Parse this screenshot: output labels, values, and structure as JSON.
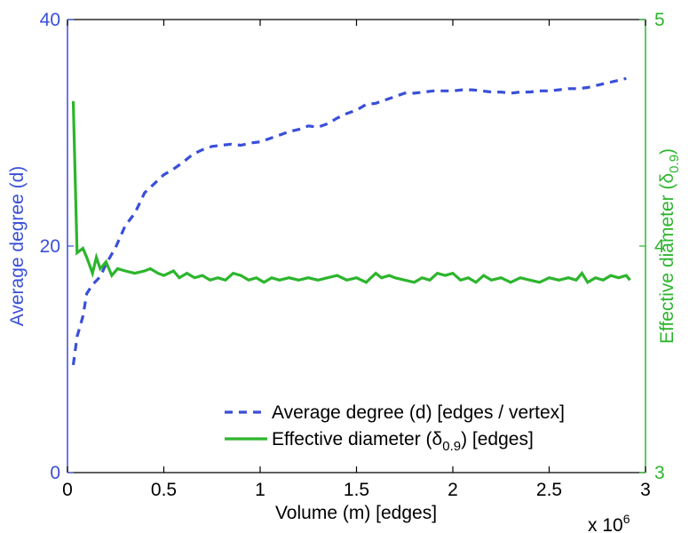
{
  "chart_data": {
    "type": "line",
    "xlabel": "Volume (m) [edges]",
    "x_scale_label": "x 10",
    "x_scale_exponent": "6",
    "xlim": [
      0,
      3
    ],
    "x_ticks": [
      "0",
      "0.5",
      "1",
      "1.5",
      "2",
      "2.5",
      "3"
    ],
    "y_left": {
      "label": "Average degree (d)",
      "lim": [
        0,
        40
      ],
      "ticks": [
        "0",
        "20",
        "40"
      ],
      "color": "#3a4fd8"
    },
    "y_right": {
      "label_main": "Effective diameter (",
      "label_symbol": "δ",
      "label_sub": "0.9",
      "label_end": ")",
      "lim": [
        3,
        5
      ],
      "ticks": [
        "3",
        "4",
        "5"
      ],
      "color": "#2db52d"
    },
    "series": [
      {
        "name": "Average degree (d) [edges / vertex]",
        "axis": "left",
        "style": "dashed",
        "color": "#3a4fd8",
        "x": [
          0.03,
          0.05,
          0.08,
          0.1,
          0.13,
          0.17,
          0.2,
          0.25,
          0.3,
          0.35,
          0.4,
          0.45,
          0.5,
          0.55,
          0.6,
          0.65,
          0.7,
          0.75,
          0.8,
          0.85,
          0.9,
          0.95,
          1.0,
          1.05,
          1.1,
          1.15,
          1.2,
          1.25,
          1.3,
          1.35,
          1.4,
          1.45,
          1.5,
          1.55,
          1.6,
          1.65,
          1.7,
          1.75,
          1.8,
          1.85,
          1.9,
          1.95,
          2.0,
          2.05,
          2.1,
          2.15,
          2.2,
          2.25,
          2.3,
          2.35,
          2.4,
          2.45,
          2.5,
          2.55,
          2.6,
          2.65,
          2.7,
          2.75,
          2.8,
          2.85,
          2.9
        ],
        "values": [
          9.5,
          12.0,
          13.8,
          15.8,
          16.6,
          17.3,
          18.4,
          19.9,
          21.8,
          22.9,
          24.7,
          25.5,
          26.3,
          26.8,
          27.4,
          28.1,
          28.5,
          28.8,
          28.9,
          29.0,
          28.9,
          29.1,
          29.2,
          29.5,
          29.8,
          30.1,
          30.3,
          30.6,
          30.5,
          30.8,
          31.3,
          31.7,
          32.0,
          32.5,
          32.6,
          32.9,
          33.2,
          33.5,
          33.5,
          33.6,
          33.7,
          33.7,
          33.7,
          33.8,
          33.8,
          33.7,
          33.6,
          33.6,
          33.5,
          33.6,
          33.6,
          33.7,
          33.7,
          33.8,
          33.9,
          33.9,
          34.0,
          34.2,
          34.4,
          34.6,
          34.8
        ]
      },
      {
        "name_main": "Effective diameter (",
        "name_symbol": "δ",
        "name_sub": "0.9",
        "name_end": ") [edges]",
        "axis": "right",
        "style": "solid",
        "color": "#2db52d",
        "x": [
          0.03,
          0.05,
          0.08,
          0.1,
          0.13,
          0.15,
          0.17,
          0.2,
          0.23,
          0.26,
          0.3,
          0.35,
          0.4,
          0.43,
          0.47,
          0.5,
          0.55,
          0.58,
          0.62,
          0.66,
          0.7,
          0.74,
          0.78,
          0.82,
          0.86,
          0.9,
          0.94,
          0.98,
          1.02,
          1.06,
          1.1,
          1.15,
          1.2,
          1.25,
          1.3,
          1.35,
          1.4,
          1.45,
          1.5,
          1.55,
          1.6,
          1.63,
          1.67,
          1.7,
          1.75,
          1.8,
          1.84,
          1.88,
          1.92,
          1.96,
          2.0,
          2.04,
          2.08,
          2.12,
          2.16,
          2.2,
          2.25,
          2.3,
          2.35,
          2.4,
          2.45,
          2.5,
          2.55,
          2.6,
          2.64,
          2.67,
          2.7,
          2.74,
          2.78,
          2.82,
          2.86,
          2.9,
          2.92
        ],
        "values": [
          4.64,
          3.97,
          3.99,
          3.95,
          3.88,
          3.95,
          3.9,
          3.93,
          3.87,
          3.9,
          3.89,
          3.88,
          3.89,
          3.9,
          3.88,
          3.87,
          3.89,
          3.86,
          3.88,
          3.86,
          3.87,
          3.85,
          3.86,
          3.85,
          3.88,
          3.87,
          3.85,
          3.86,
          3.84,
          3.86,
          3.85,
          3.86,
          3.85,
          3.86,
          3.85,
          3.86,
          3.87,
          3.85,
          3.86,
          3.84,
          3.88,
          3.86,
          3.87,
          3.86,
          3.85,
          3.84,
          3.86,
          3.85,
          3.88,
          3.87,
          3.88,
          3.85,
          3.86,
          3.84,
          3.87,
          3.85,
          3.86,
          3.84,
          3.86,
          3.85,
          3.84,
          3.86,
          3.85,
          3.86,
          3.85,
          3.88,
          3.84,
          3.86,
          3.85,
          3.87,
          3.86,
          3.87,
          3.85
        ]
      }
    ],
    "legend": {
      "placement": "bottom-right",
      "entry1": "Average degree (d) [edges / vertex]",
      "entry2_main": "Effective diameter (",
      "entry2_symbol": "δ",
      "entry2_sub": "0.9",
      "entry2_end": ") [edges]"
    }
  }
}
